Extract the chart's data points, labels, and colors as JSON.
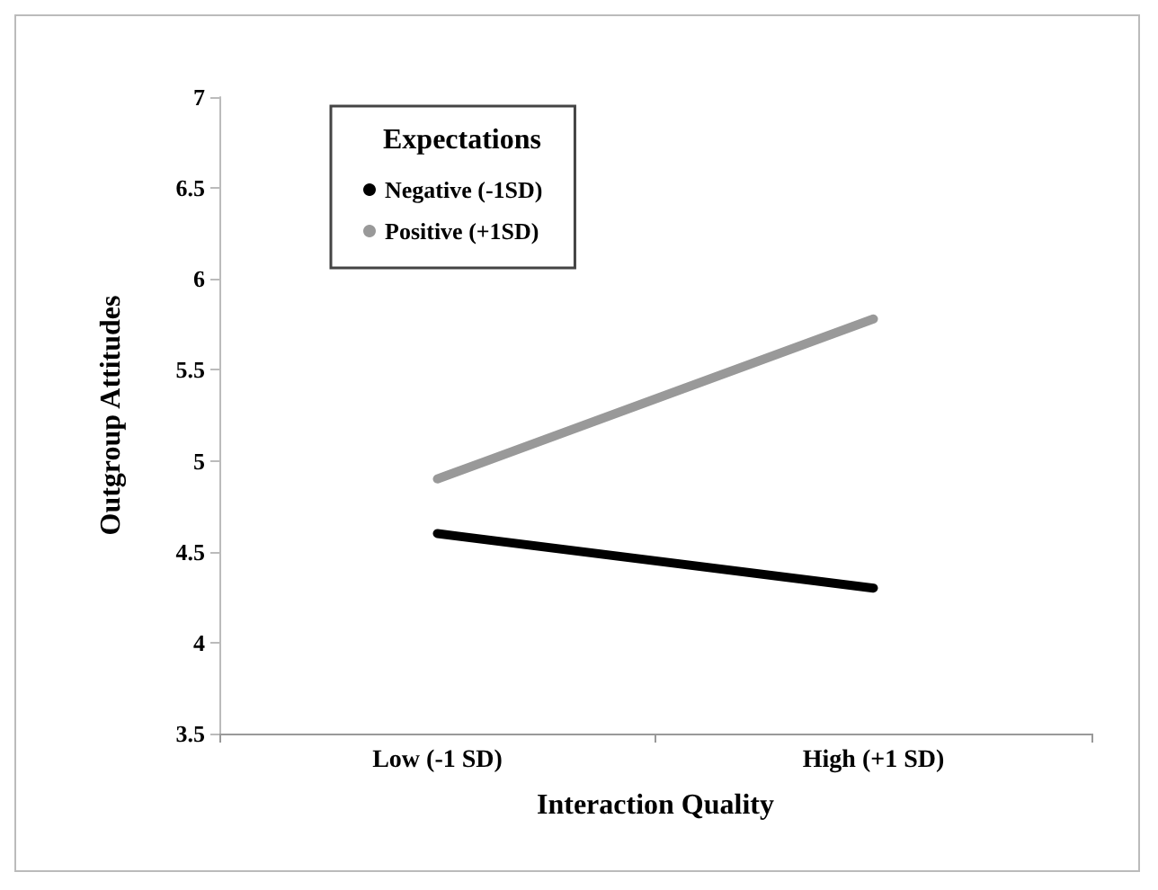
{
  "chart_data": {
    "type": "line",
    "xlabel": "Interaction Quality",
    "ylabel": "Outgroup Attitudes",
    "legend_title": "Expectations",
    "categories": [
      "Low (-1 SD)",
      "High (+1 SD)"
    ],
    "series": [
      {
        "name": "Negative (-1SD)",
        "color": "#000000",
        "values": [
          4.6,
          4.3
        ]
      },
      {
        "name": "Positive (+1SD)",
        "color": "#999999",
        "values": [
          4.9,
          5.78
        ]
      }
    ],
    "ylim": [
      3.5,
      7
    ],
    "yticks": [
      3.5,
      4,
      4.5,
      5,
      5.5,
      6,
      6.5,
      7
    ],
    "grid": false,
    "legend": "top left"
  }
}
